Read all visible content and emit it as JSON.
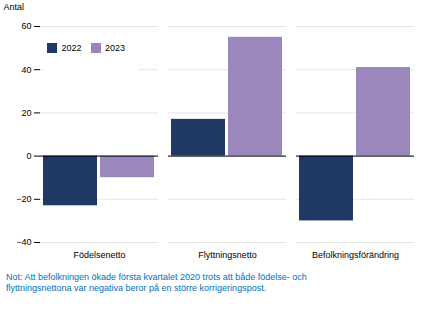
{
  "chart_data": {
    "type": "bar",
    "ylabel": "Antal",
    "categories": [
      "Födelsenetto",
      "Flyttningsnetto",
      "Befolkningsförändring"
    ],
    "series": [
      {
        "name": "2022",
        "color": "#1F3864",
        "values": [
          -23,
          17,
          -30
        ]
      },
      {
        "name": "2023",
        "color": "#9B86BD",
        "values": [
          -10,
          55,
          41
        ]
      }
    ],
    "ylim": [
      -40,
      60
    ],
    "yticks": [
      -40,
      -20,
      0,
      20,
      40,
      60
    ],
    "grid": true,
    "legend": "upper left",
    "note": {
      "text": "Not: Att befolkningen ökade första kvartalet 2020 trots att både födelse- och\nflyttningsnettona var negativa beror på en större korrigeringspost.",
      "color": "#0070C0"
    }
  }
}
